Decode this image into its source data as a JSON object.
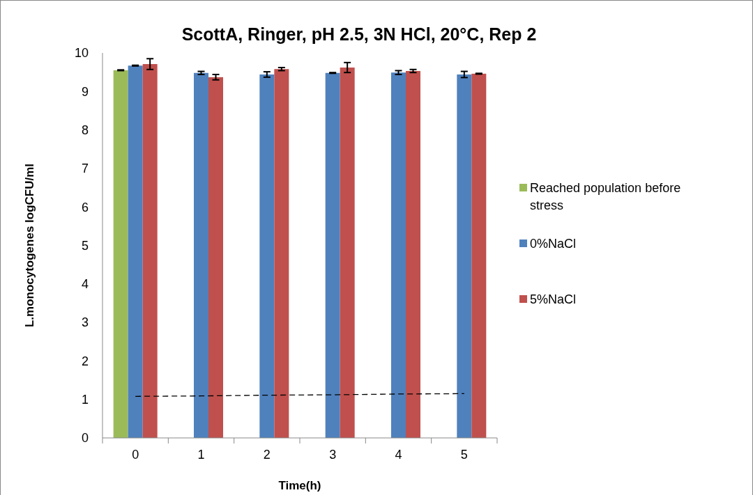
{
  "chart_data": {
    "type": "bar",
    "title": "ScottA, Ringer, pH 2.5, 3N HCl, 20°C, Rep 2",
    "xlabel": "Time(h)",
    "ylabel": "L.monocytogenes logCFU/ml",
    "categories": [
      "0",
      "1",
      "2",
      "3",
      "4",
      "5"
    ],
    "series": [
      {
        "name": "Reached population before stress",
        "color": "#9bbb59",
        "values": [
          9.55,
          null,
          null,
          null,
          null,
          null
        ],
        "errors": [
          0.01,
          null,
          null,
          null,
          null,
          null
        ]
      },
      {
        "name": "0%NaCl",
        "color": "#4f81bd",
        "values": [
          9.67,
          9.48,
          9.44,
          9.48,
          9.49,
          9.44
        ],
        "errors": [
          0.01,
          0.04,
          0.07,
          0.01,
          0.05,
          0.08
        ]
      },
      {
        "name": "5%NaCl",
        "color": "#c0504d",
        "values": [
          9.71,
          9.37,
          9.58,
          9.62,
          9.53,
          9.46
        ],
        "errors": [
          0.14,
          0.07,
          0.04,
          0.13,
          0.04,
          0.01
        ]
      },
      {
        "type": "line",
        "color": "#000000",
        "line_style": "dashed",
        "values": [
          1.08,
          1.09,
          1.11,
          1.12,
          1.14,
          1.15
        ]
      }
    ],
    "ylim": [
      0,
      10
    ],
    "yticks": [
      0,
      1,
      2,
      3,
      4,
      5,
      6,
      7,
      8,
      9,
      10
    ],
    "grid": false,
    "legend": "right"
  }
}
